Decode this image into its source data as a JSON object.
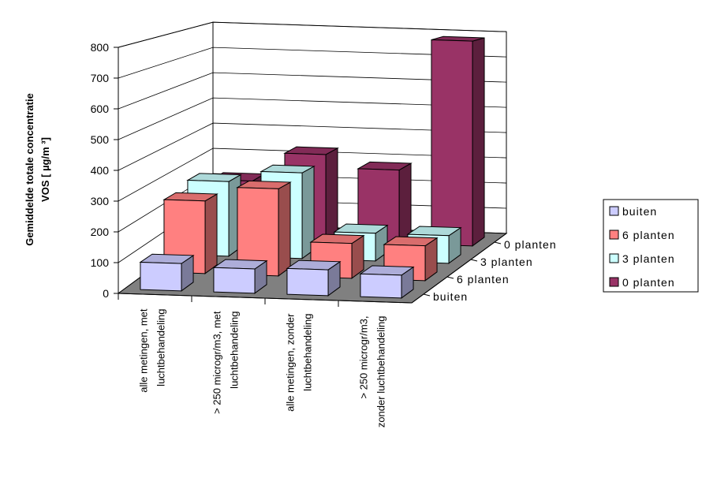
{
  "chart_data": {
    "type": "bar3d",
    "ylabel": [
      "Gemiddelde totale concentratie",
      "VOS [ µg/m ³]"
    ],
    "categories": [
      [
        "alle metingen, met",
        "luchtbehandeling"
      ],
      [
        "> 250 microgr/m3, met",
        "luchtbehandeling"
      ],
      [
        "alle metingen, zonder",
        "luchtbehandeling"
      ],
      [
        "> 250 microgr/m3,",
        "zonder luchtbehandeling"
      ]
    ],
    "series": [
      {
        "name": "buiten",
        "color": "#ccccff",
        "values": [
          90,
          80,
          85,
          75
        ]
      },
      {
        "name": "6 planten",
        "color": "#ff8080",
        "values": [
          250,
          300,
          120,
          120
        ]
      },
      {
        "name": "3 planten",
        "color": "#ccffff",
        "values": [
          270,
          310,
          100,
          100
        ]
      },
      {
        "name": "0 planten",
        "color": "#993366",
        "values": [
          220,
          330,
          280,
          780
        ]
      }
    ],
    "ylim": [
      0,
      800
    ],
    "yticks": [
      0,
      100,
      200,
      300,
      400,
      500,
      600,
      700,
      800
    ],
    "grid": true
  }
}
